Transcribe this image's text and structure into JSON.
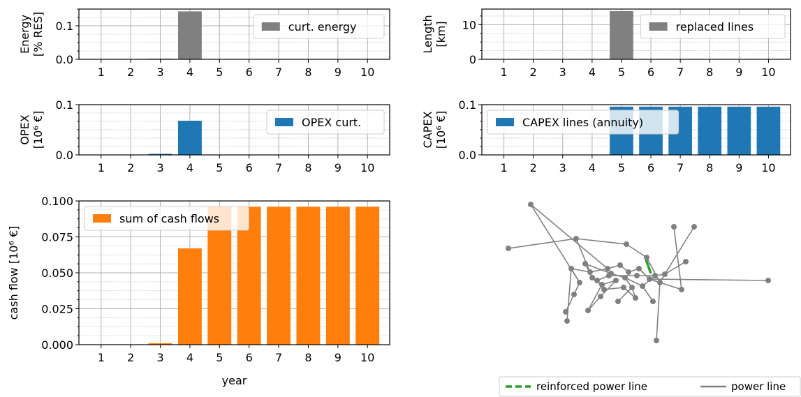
{
  "chart_data": [
    {
      "id": "energy",
      "type": "bar",
      "categories": [
        "1",
        "2",
        "3",
        "4",
        "5",
        "6",
        "7",
        "8",
        "9",
        "10"
      ],
      "values": [
        0,
        0,
        0.002,
        0.143,
        0,
        0,
        0,
        0,
        0,
        0
      ],
      "ylabel_lines": [
        "Energy",
        "[% RES]"
      ],
      "ylim": [
        0,
        0.15
      ],
      "yticks": [
        0.0,
        0.1
      ],
      "ytick_labels": [
        "0.0",
        "0.1"
      ],
      "minor_step": 0.025,
      "grid": true,
      "legend": "curt. energy",
      "legend_position": "upper right",
      "color": "#808080"
    },
    {
      "id": "length",
      "type": "bar",
      "categories": [
        "1",
        "2",
        "3",
        "4",
        "5",
        "6",
        "7",
        "8",
        "9",
        "10"
      ],
      "values": [
        0,
        0,
        0,
        0,
        13.9,
        0,
        0,
        0,
        0,
        0
      ],
      "ylabel_lines": [
        "Length",
        "[km]"
      ],
      "ylim": [
        0,
        14.5
      ],
      "yticks": [
        0,
        10
      ],
      "ytick_labels": [
        "0",
        "10"
      ],
      "minor_step": 2.5,
      "grid": true,
      "legend": "replaced lines",
      "legend_position": "upper right",
      "color": "#808080"
    },
    {
      "id": "opex",
      "type": "bar",
      "categories": [
        "1",
        "2",
        "3",
        "4",
        "5",
        "6",
        "7",
        "8",
        "9",
        "10"
      ],
      "values": [
        0,
        0,
        0.002,
        0.068,
        0,
        0,
        0,
        0,
        0,
        0
      ],
      "ylabel_lines": [
        "OPEX",
        "[10⁶ €]"
      ],
      "ylim": [
        0,
        0.1
      ],
      "yticks": [
        0.0,
        0.1
      ],
      "ytick_labels": [
        "0.0",
        "0.1"
      ],
      "minor_step": 0.0167,
      "grid": true,
      "legend": "OPEX curt.",
      "legend_position": "upper right",
      "color": "#1f77b4"
    },
    {
      "id": "capex",
      "type": "bar",
      "categories": [
        "1",
        "2",
        "3",
        "4",
        "5",
        "6",
        "7",
        "8",
        "9",
        "10"
      ],
      "values": [
        0,
        0,
        0,
        0,
        0.096,
        0.096,
        0.096,
        0.096,
        0.096,
        0.096
      ],
      "ylabel_lines": [
        "CAPEX",
        "[10⁶ €]"
      ],
      "ylim": [
        0,
        0.1
      ],
      "yticks": [
        0.0,
        0.1
      ],
      "ytick_labels": [
        "0.0",
        "0.1"
      ],
      "minor_step": 0.0167,
      "grid": true,
      "legend": "CAPEX lines (annuity)",
      "legend_position": "upper left",
      "color": "#1f77b4"
    },
    {
      "id": "cashflow",
      "type": "bar",
      "categories": [
        "1",
        "2",
        "3",
        "4",
        "5",
        "6",
        "7",
        "8",
        "9",
        "10"
      ],
      "values": [
        0,
        0,
        0.001,
        0.067,
        0.096,
        0.096,
        0.096,
        0.096,
        0.096,
        0.096
      ],
      "ylabel": "cash flow [10⁶ €]",
      "xlabel": "year",
      "ylim": [
        0,
        0.1
      ],
      "yticks": [
        0.0,
        0.025,
        0.05,
        0.075,
        0.1
      ],
      "ytick_labels": [
        "0.000",
        "0.025",
        "0.050",
        "0.075",
        "0.100"
      ],
      "minor_step": 0.00625,
      "grid": true,
      "legend": "sum of cash flows",
      "legend_position": "upper left",
      "color": "#ff7f0e"
    }
  ],
  "network": {
    "legend": {
      "reinforced": "reinforced power line",
      "normal": "power line"
    },
    "colors": {
      "reinforced": "#2ca02c",
      "normal": "#808080"
    }
  }
}
